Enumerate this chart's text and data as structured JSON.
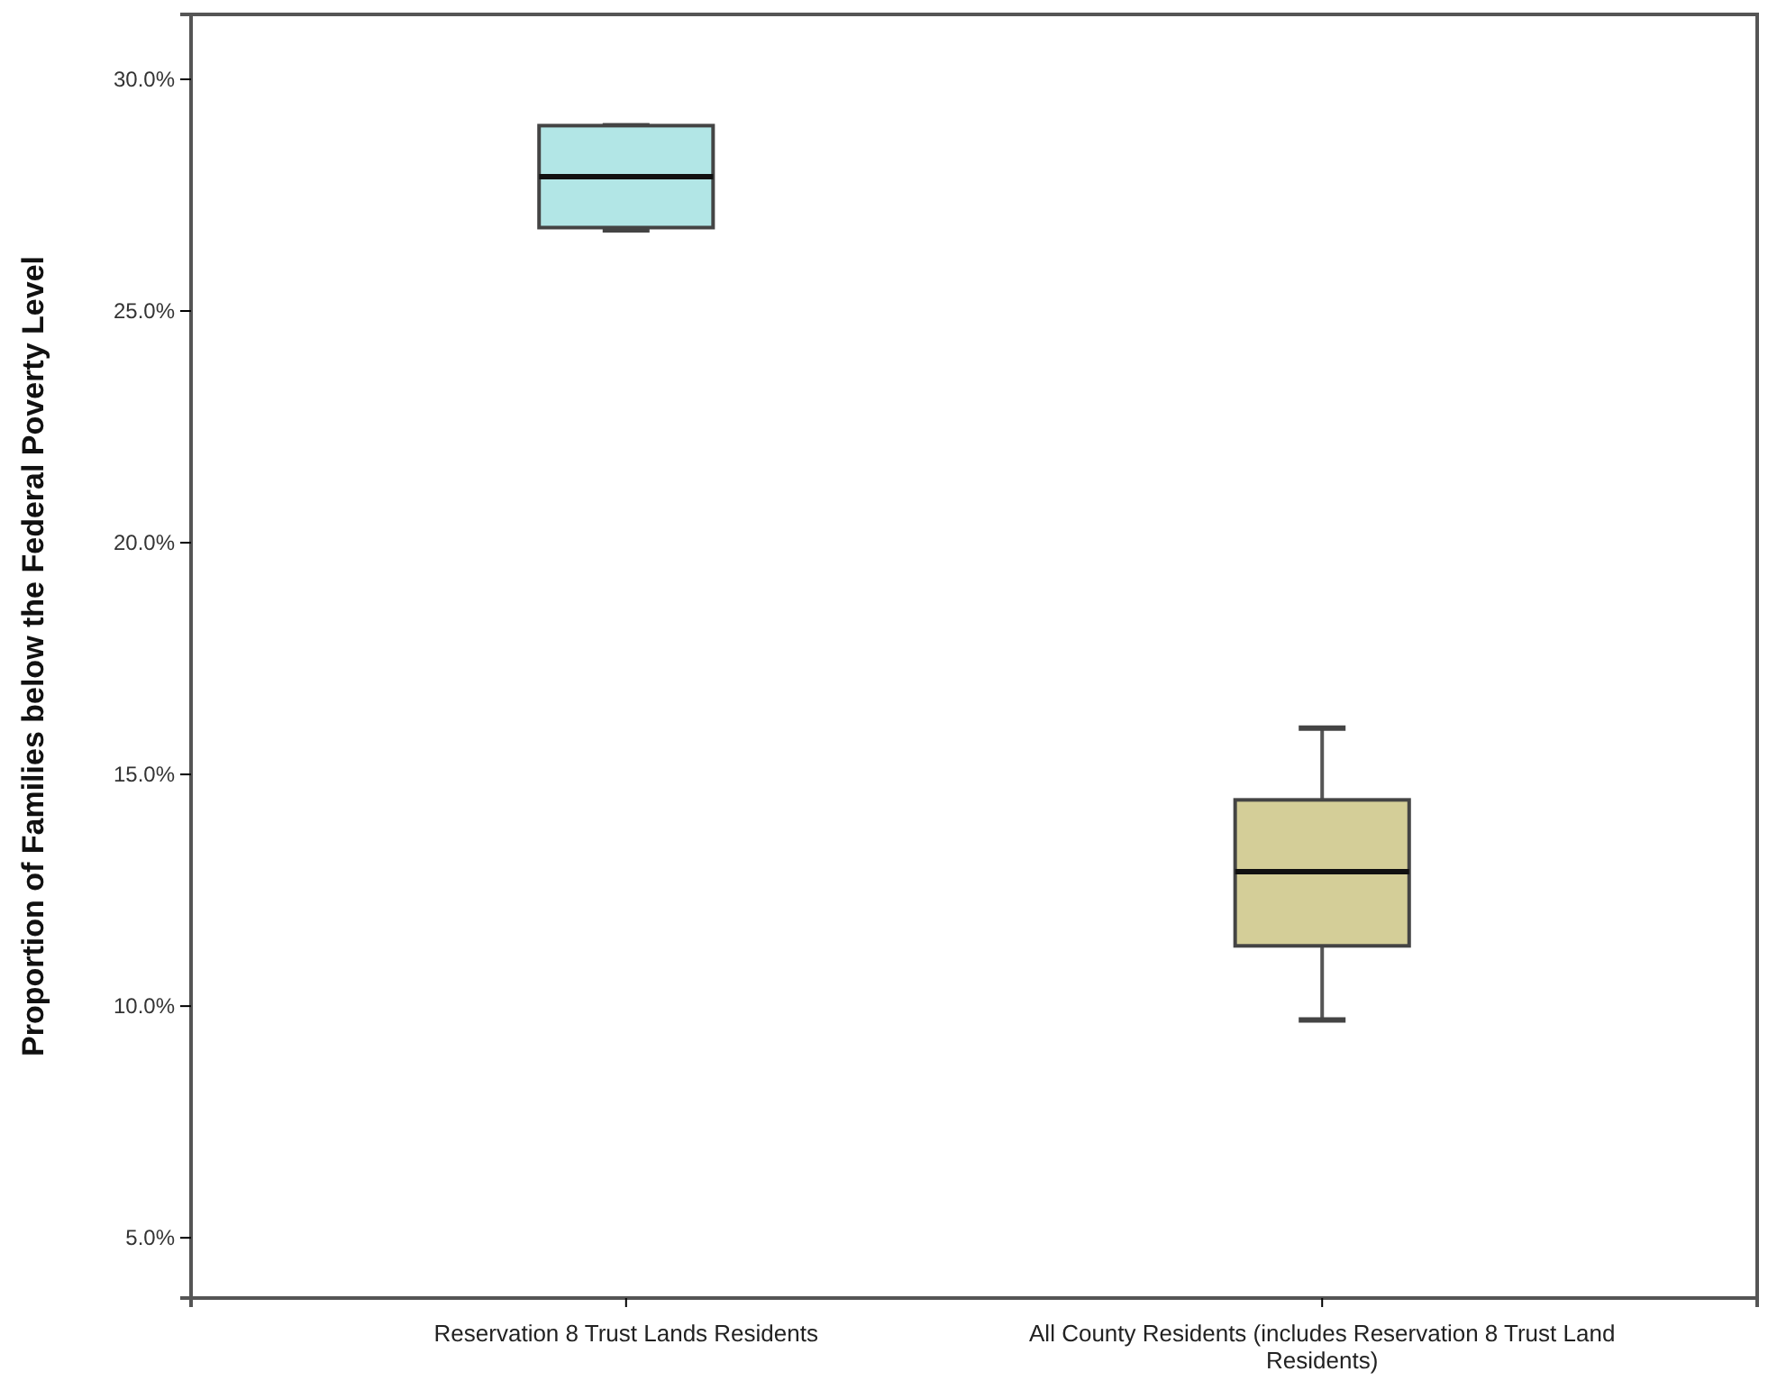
{
  "chart_data": {
    "type": "box",
    "ylabel": "Proportion of Families below the Federal Poverty Level",
    "categories": [
      "Reservation 8 Trust Lands Residents",
      "All County Residents (includes Reservation 8 Trust Land Residents)"
    ],
    "colors": [
      "#b2e6e6",
      "#d4ce98"
    ],
    "boxes": [
      {
        "low": 26.75,
        "q1": 26.8,
        "median": 27.9,
        "q3": 29.0,
        "high": 29.0
      },
      {
        "low": 9.7,
        "q1": 11.3,
        "median": 12.9,
        "q3": 14.45,
        "high": 16.0
      }
    ],
    "ylim": [
      3.7,
      31.4
    ],
    "yticks": [
      {
        "value": 5,
        "label": "5.0%"
      },
      {
        "value": 10,
        "label": "10.0%"
      },
      {
        "value": 15,
        "label": "15.0%"
      },
      {
        "value": 20,
        "label": "20.0%"
      },
      {
        "value": 25,
        "label": "25.0%"
      },
      {
        "value": 30,
        "label": "30.0%"
      }
    ],
    "grid": false
  }
}
